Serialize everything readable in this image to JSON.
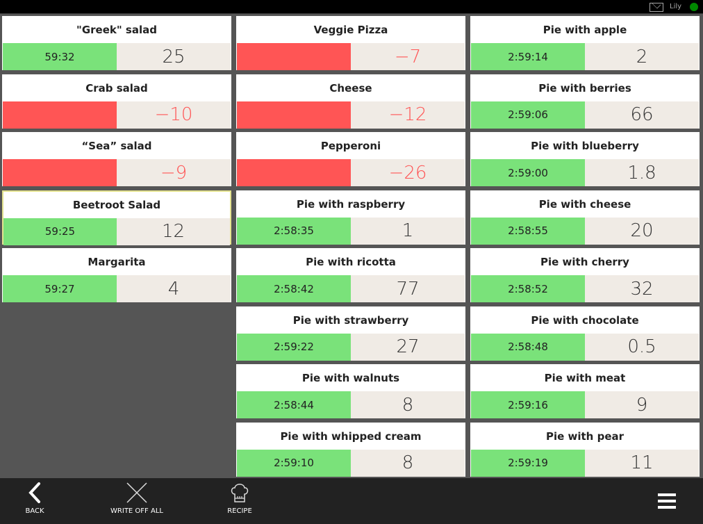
{
  "topbar": {
    "user": "Lily",
    "status_color": "#008800"
  },
  "items": [
    {
      "name": "\"Greek\" salad",
      "timer": "59:32",
      "qty": "25",
      "state": "ok"
    },
    {
      "name": "Veggie Pizza",
      "timer": "",
      "qty": "−7",
      "state": "neg"
    },
    {
      "name": "Pie with apple",
      "timer": "2:59:14",
      "qty": "2",
      "state": "ok"
    },
    {
      "name": "Crab salad",
      "timer": "",
      "qty": "−10",
      "state": "neg"
    },
    {
      "name": "Cheese",
      "timer": "",
      "qty": "−12",
      "state": "neg"
    },
    {
      "name": "Pie with berries",
      "timer": "2:59:06",
      "qty": "66",
      "state": "ok"
    },
    {
      "name": "“Sea” salad",
      "timer": "",
      "qty": "−9",
      "state": "neg"
    },
    {
      "name": "Pepperoni",
      "timer": "",
      "qty": "−26",
      "state": "neg"
    },
    {
      "name": "Pie with blueberry",
      "timer": "2:59:00",
      "qty": "1.8",
      "state": "ok"
    },
    {
      "name": "Beetroot Salad",
      "timer": "59:25",
      "qty": "12",
      "state": "ok",
      "selected": true
    },
    {
      "name": "Pie with raspberry",
      "timer": "2:58:35",
      "qty": "1",
      "state": "ok"
    },
    {
      "name": "Pie with cheese",
      "timer": "2:58:55",
      "qty": "20",
      "state": "ok"
    },
    {
      "name": "Margarita",
      "timer": "59:27",
      "qty": "4",
      "state": "ok"
    },
    {
      "name": "Pie with ricotta",
      "timer": "2:58:42",
      "qty": "77",
      "state": "ok"
    },
    {
      "name": "Pie with cherry",
      "timer": "2:58:52",
      "qty": "32",
      "state": "ok"
    },
    {
      "empty": true
    },
    {
      "name": "Pie with strawberry",
      "timer": "2:59:22",
      "qty": "27",
      "state": "ok"
    },
    {
      "name": "Pie with chocolate",
      "timer": "2:58:48",
      "qty": "0.5",
      "state": "ok"
    },
    {
      "empty": true
    },
    {
      "name": "Pie with walnuts",
      "timer": "2:58:44",
      "qty": "8",
      "state": "ok"
    },
    {
      "name": "Pie with meat",
      "timer": "2:59:16",
      "qty": "9",
      "state": "ok"
    },
    {
      "empty": true
    },
    {
      "name": "Pie with whipped cream",
      "timer": "2:59:10",
      "qty": "8",
      "state": "ok"
    },
    {
      "name": "Pie with pear",
      "timer": "2:59:19",
      "qty": "11",
      "state": "ok"
    }
  ],
  "colors": {
    "ok": "#7ae27a",
    "neg": "#ff5555"
  },
  "bottombar": {
    "back": "BACK",
    "write_off_all": "WRITE OFF ALL",
    "recipe": "RECIPE"
  }
}
